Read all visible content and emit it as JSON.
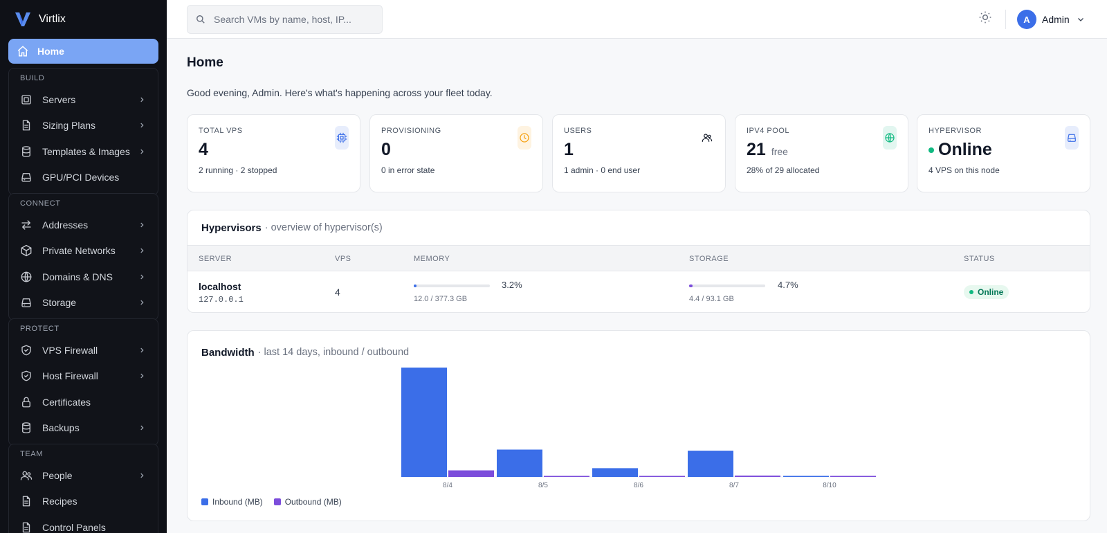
{
  "app": {
    "name": "Virtlix"
  },
  "sidebar": {
    "home_label": "Home",
    "groups": [
      {
        "title": "BUILD",
        "items": [
          {
            "label": "Servers",
            "icon": "server-icon",
            "chevron": true
          },
          {
            "label": "Sizing Plans",
            "icon": "document-icon",
            "chevron": true
          },
          {
            "label": "Templates & Images",
            "icon": "database-icon",
            "chevron": true
          },
          {
            "label": "GPU/PCI Devices",
            "icon": "drive-icon",
            "chevron": false
          }
        ]
      },
      {
        "title": "CONNECT",
        "items": [
          {
            "label": "Addresses",
            "icon": "arrows-icon",
            "chevron": true
          },
          {
            "label": "Private Networks",
            "icon": "cube-icon",
            "chevron": true
          },
          {
            "label": "Domains & DNS",
            "icon": "globe-icon",
            "chevron": true
          },
          {
            "label": "Storage",
            "icon": "drive-icon",
            "chevron": true
          }
        ]
      },
      {
        "title": "PROTECT",
        "items": [
          {
            "label": "VPS Firewall",
            "icon": "shield-icon",
            "chevron": true
          },
          {
            "label": "Host Firewall",
            "icon": "shield-icon",
            "chevron": true
          },
          {
            "label": "Certificates",
            "icon": "lock-icon",
            "chevron": false
          },
          {
            "label": "Backups",
            "icon": "database-icon",
            "chevron": true
          }
        ]
      },
      {
        "title": "TEAM",
        "items": [
          {
            "label": "People",
            "icon": "users-icon",
            "chevron": true
          },
          {
            "label": "Recipes",
            "icon": "document-icon",
            "chevron": false
          },
          {
            "label": "Control Panels",
            "icon": "document-icon",
            "chevron": false
          }
        ]
      }
    ]
  },
  "topbar": {
    "search_placeholder": "Search VMs by name, host, IP...",
    "user_initial": "A",
    "user_name": "Admin"
  },
  "main": {
    "title": "Home",
    "greeting": "Good evening, Admin. Here's what's happening across your fleet today.",
    "cards": [
      {
        "title": "TOTAL VPS",
        "value": "4",
        "sub": "",
        "note": "2 running · 2 stopped",
        "icon": "chip-icon",
        "accent": "#3b6ee8",
        "status_dot": false
      },
      {
        "title": "PROVISIONING",
        "value": "0",
        "sub": "",
        "note": "0 in error state",
        "icon": "clock-icon",
        "accent": "#f59e0b",
        "status_dot": false
      },
      {
        "title": "USERS",
        "value": "1",
        "sub": "",
        "note": "1 admin · 0 end user",
        "icon": "users-icon",
        "accent": "#111827",
        "status_dot": false
      },
      {
        "title": "IPV4 POOL",
        "value": "21",
        "sub": "free",
        "note": "28% of 29 allocated",
        "icon": "globe-icon",
        "accent": "#10b981",
        "status_dot": false
      },
      {
        "title": "HYPERVISOR",
        "value": "Online",
        "sub": "",
        "note": "4 VPS on this node",
        "icon": "drive-icon",
        "accent": "#3b6ee8",
        "status_dot": true
      }
    ],
    "hypervisors": {
      "title": "Hypervisors",
      "subtitle": "· overview of hypervisor(s)",
      "columns": [
        "SERVER",
        "VPS",
        "MEMORY",
        "STORAGE",
        "STATUS"
      ],
      "rows": [
        {
          "server": "localhost",
          "ip": "127.0.0.1",
          "vps": "4",
          "memory_pct_label": "3.2%",
          "memory_fraction": 0.032,
          "memory_usage": "12.0 / 377.3 GB",
          "storage_pct_label": "4.7%",
          "storage_fraction": 0.047,
          "storage_usage": "4.4 / 93.1 GB",
          "status": "Online"
        }
      ]
    },
    "bandwidth": {
      "title": "Bandwidth",
      "subtitle": "· last 14 days, inbound / outbound"
    }
  },
  "chart_data": {
    "type": "bar",
    "categories": [
      "8/4",
      "8/5",
      "8/6",
      "8/7",
      "8/10"
    ],
    "series": [
      {
        "name": "Inbound (MB)",
        "color": "#3b6ee8",
        "values": [
          100,
          25,
          8,
          24,
          0.3
        ]
      },
      {
        "name": "Outbound (MB)",
        "color": "#7c4ddb",
        "values": [
          6,
          0.8,
          0.5,
          1.2,
          0.3
        ]
      }
    ],
    "ylim": [
      0,
      100
    ],
    "grid": false,
    "legend": "bottom-left"
  }
}
